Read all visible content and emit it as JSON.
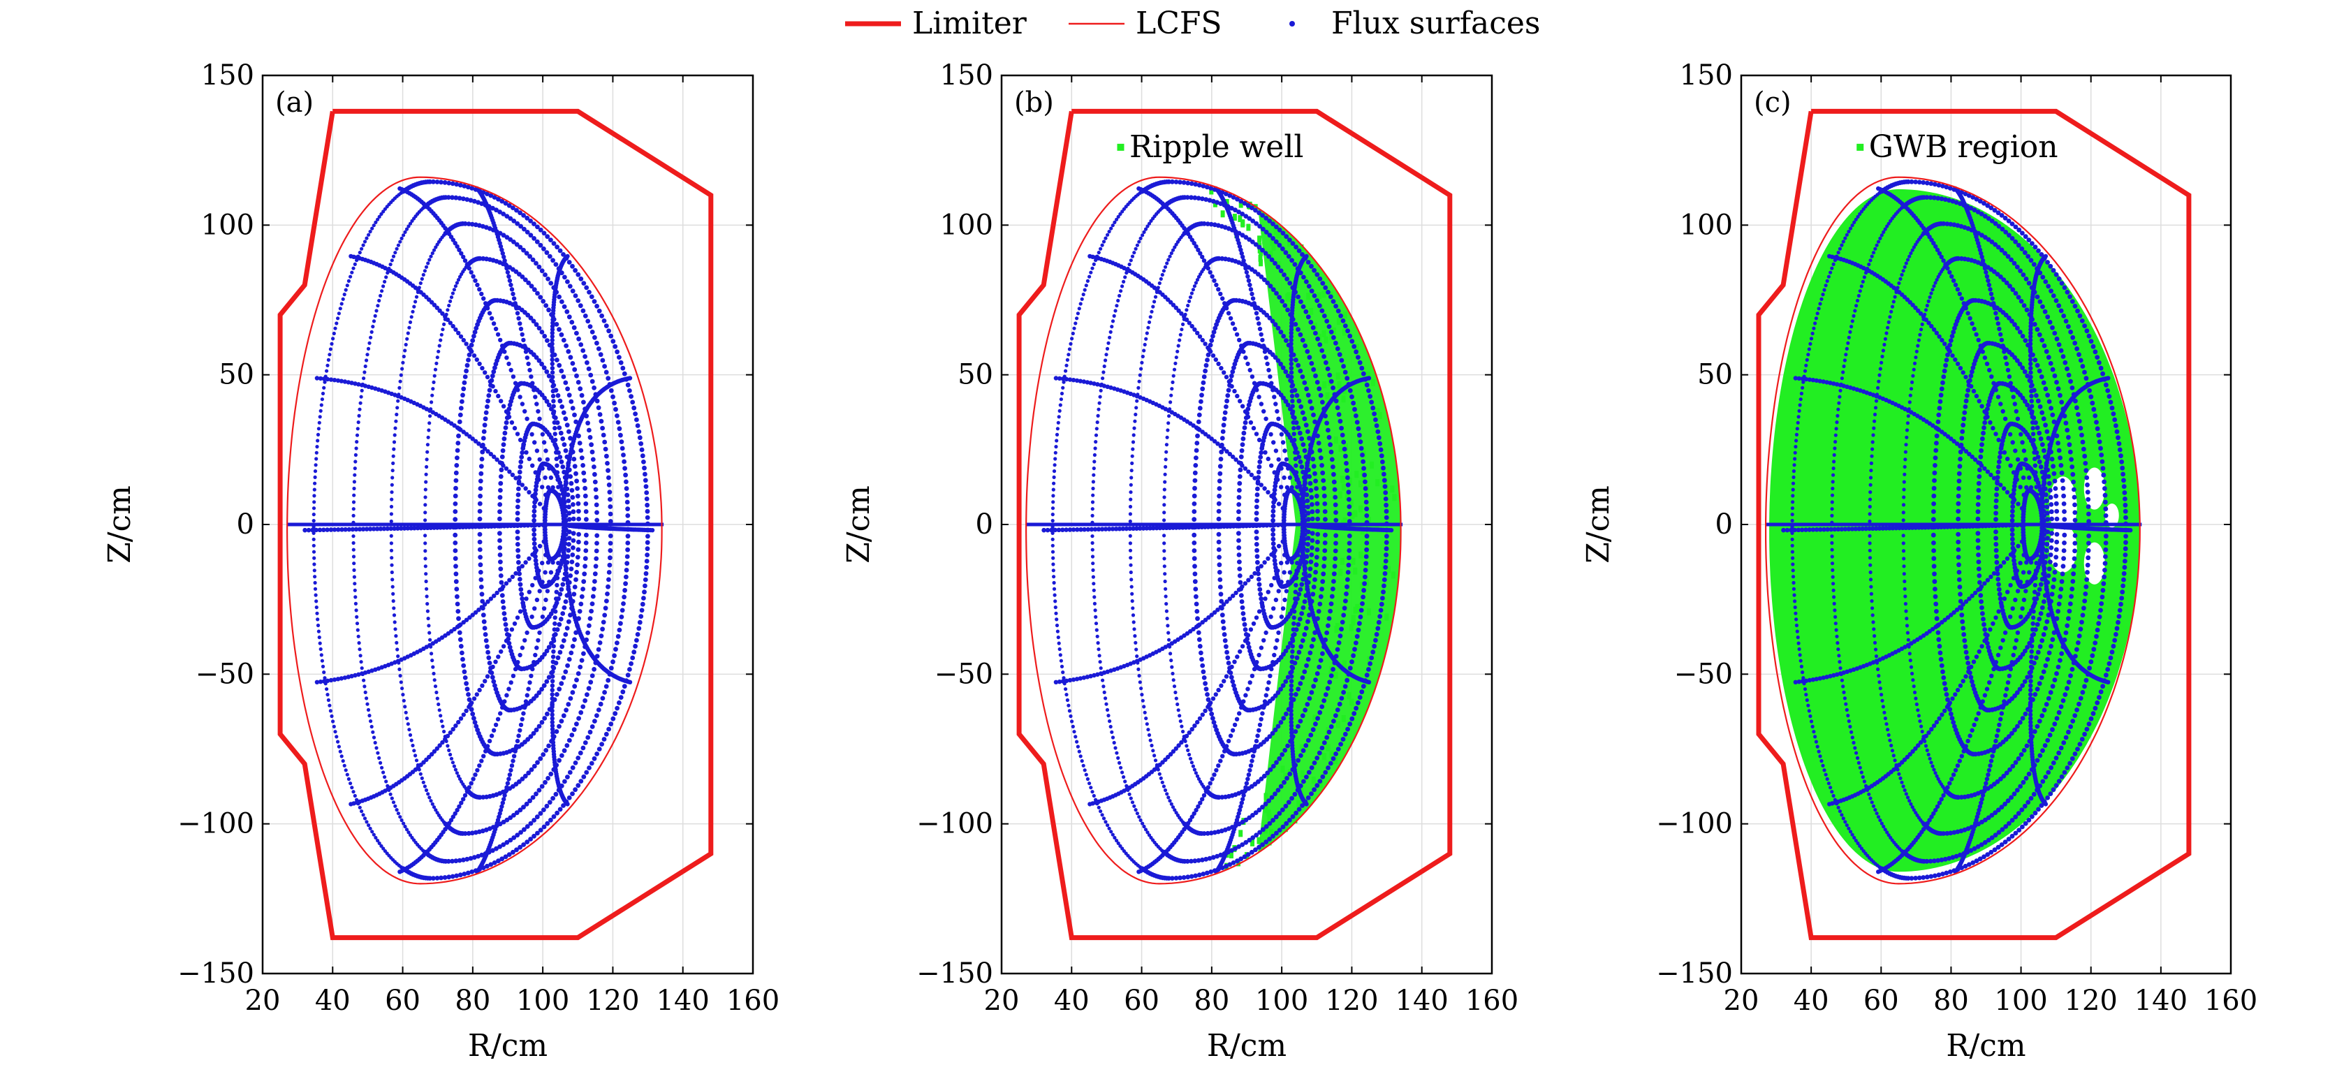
{
  "legend": {
    "items": [
      {
        "label": "Limiter",
        "color": "#ee1c1c",
        "kind": "thick-line"
      },
      {
        "label": "LCFS",
        "color": "#ee1c1c",
        "kind": "thin-line"
      },
      {
        "label": "Flux surfaces",
        "color": "#1a1ad6",
        "kind": "dot"
      }
    ]
  },
  "colors": {
    "limiter": "#ee1c1c",
    "lcfs": "#ee1c1c",
    "flux": "#1a1ad6",
    "region": "#22ee22",
    "grid": "#dddddd"
  },
  "chart_data": [
    {
      "panel": "(a)",
      "type": "line",
      "xlabel": "R/cm",
      "ylabel": "Z/cm",
      "xlim": [
        20,
        160
      ],
      "ylim": [
        -150,
        150
      ],
      "xticks": [
        20,
        40,
        60,
        80,
        100,
        120,
        140,
        160
      ],
      "yticks": [
        -150,
        -100,
        -50,
        0,
        50,
        100,
        150
      ],
      "grid": true,
      "annotation": "",
      "region": "none",
      "limiter": {
        "R": [
          40,
          110,
          148,
          148,
          110,
          40,
          32,
          25,
          25,
          32,
          40
        ],
        "Z": [
          138,
          138,
          110,
          -110,
          -138,
          -138,
          -80,
          -70,
          70,
          80,
          138
        ]
      },
      "lcfs": {
        "R0": 65,
        "Zc": -2,
        "R_outer": 134,
        "R_inner": 27,
        "Z_top": 116,
        "Z_bottom": -120
      },
      "flux_surfaces": {
        "axis_R": 105,
        "axis_Z": 0
      }
    },
    {
      "panel": "(b)",
      "type": "line",
      "xlabel": "R/cm",
      "ylabel": "Z/cm",
      "xlim": [
        20,
        160
      ],
      "ylim": [
        -150,
        150
      ],
      "xticks": [
        20,
        40,
        60,
        80,
        100,
        120,
        140,
        160
      ],
      "yticks": [
        -150,
        -100,
        -50,
        0,
        50,
        100,
        150
      ],
      "grid": true,
      "annotation": "Ripple well",
      "region": "ripple",
      "limiter": {
        "R": [
          40,
          110,
          148,
          148,
          110,
          40,
          32,
          25,
          25,
          32,
          40
        ],
        "Z": [
          138,
          138,
          110,
          -110,
          -138,
          -138,
          -80,
          -70,
          70,
          80,
          138
        ]
      },
      "lcfs": {
        "R0": 65,
        "Zc": -2,
        "R_outer": 134,
        "R_inner": 27,
        "Z_top": 116,
        "Z_bottom": -120
      },
      "flux_surfaces": {
        "axis_R": 105,
        "axis_Z": 0
      }
    },
    {
      "panel": "(c)",
      "type": "line",
      "xlabel": "R/cm",
      "ylabel": "Z/cm",
      "xlim": [
        20,
        160
      ],
      "ylim": [
        -150,
        150
      ],
      "xticks": [
        20,
        40,
        60,
        80,
        100,
        120,
        140,
        160
      ],
      "yticks": [
        -150,
        -100,
        -50,
        0,
        50,
        100,
        150
      ],
      "grid": true,
      "annotation": "GWB region",
      "region": "gwb",
      "limiter": {
        "R": [
          40,
          110,
          148,
          148,
          110,
          40,
          32,
          25,
          25,
          32,
          40
        ],
        "Z": [
          138,
          138,
          110,
          -110,
          -138,
          -138,
          -80,
          -70,
          70,
          80,
          138
        ]
      },
      "lcfs": {
        "R0": 65,
        "Zc": -2,
        "R_outer": 134,
        "R_inner": 27,
        "Z_top": 116,
        "Z_bottom": -120
      },
      "flux_surfaces": {
        "axis_R": 105,
        "axis_Z": 0
      }
    }
  ]
}
